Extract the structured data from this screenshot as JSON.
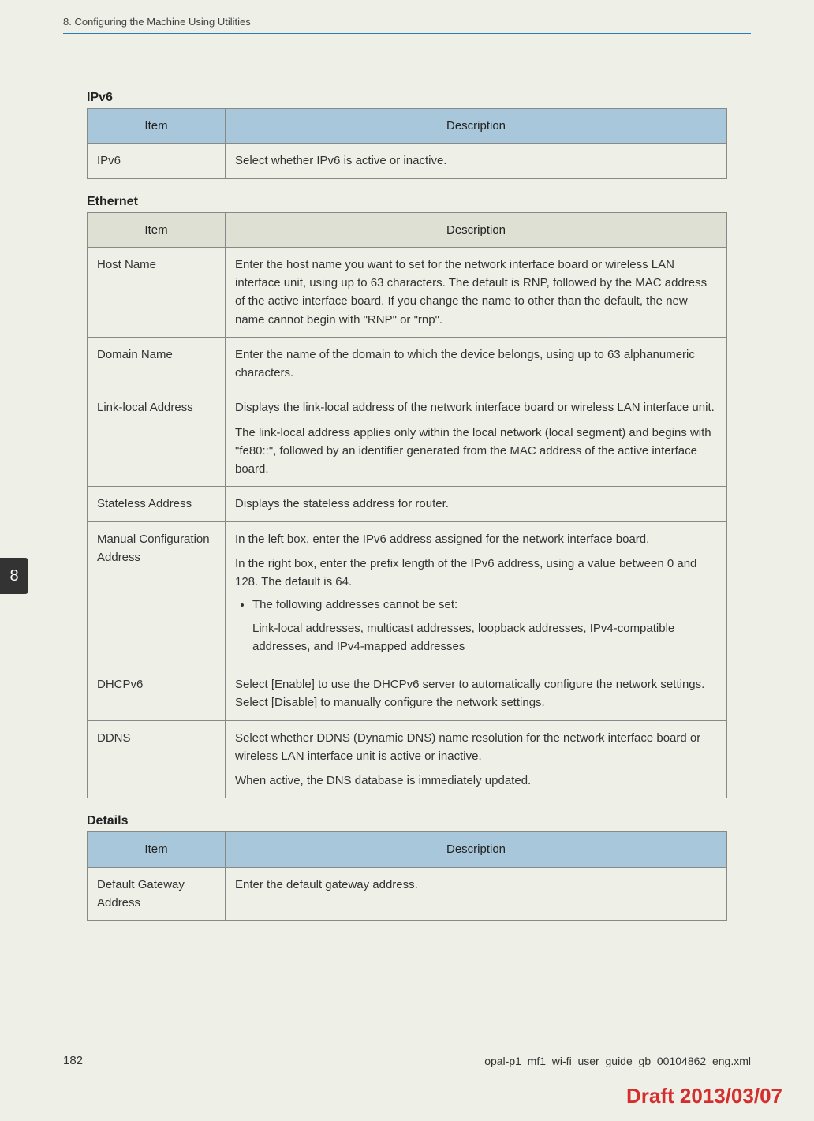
{
  "header": {
    "chapter": "8. Configuring the Machine Using Utilities"
  },
  "sideTab": "8",
  "sections": [
    {
      "title": "IPv6",
      "header_bg": "#a8c7da",
      "columns": {
        "item": "Item",
        "desc": "Description"
      },
      "rows": [
        {
          "item": "IPv6",
          "desc": "Select whether IPv6 is active or inactive."
        }
      ]
    },
    {
      "title": "Ethernet",
      "header_bg": "#dee0d4",
      "columns": {
        "item": "Item",
        "desc": "Description"
      },
      "rows": [
        {
          "item": "Host Name",
          "desc": "Enter the host name you want to set for the network interface board or wireless LAN interface unit, using up to 63 characters. The default is RNP, followed by the MAC address of the active interface board. If you change the name to other than the default, the new name cannot begin with \"RNP\" or \"rnp\"."
        },
        {
          "item": "Domain Name",
          "desc": "Enter the name of the domain to which the device belongs, using up to 63 alphanumeric characters."
        },
        {
          "item": "Link-local Address",
          "desc_multi": [
            "Displays the link-local address of the network interface board or wireless LAN interface unit.",
            "The link-local address applies only within the local network (local segment) and begins with \"fe80::\", followed by an identifier generated from the MAC address of the active interface board."
          ]
        },
        {
          "item": "Stateless Address",
          "desc": "Displays the stateless address for router."
        },
        {
          "item": "Manual Configuration Address",
          "desc_multi": [
            "In the left box, enter the IPv6 address assigned for the network interface board.",
            "In the right box, enter the prefix length of the IPv6 address, using a value between 0 and 128. The default is 64."
          ],
          "bullet": "The following addresses cannot be set:",
          "bullet_sub": "Link-local addresses, multicast addresses, loopback addresses, IPv4-compatible addresses, and IPv4-mapped addresses"
        },
        {
          "item": "DHCPv6",
          "desc": "Select [Enable] to use the DHCPv6 server to automatically configure the network settings. Select [Disable] to manually configure the network settings."
        },
        {
          "item": "DDNS",
          "desc_multi": [
            "Select whether DDNS (Dynamic DNS) name resolution for the network interface board or wireless LAN interface unit is active or inactive.",
            "When active, the DNS database is immediately updated."
          ]
        }
      ]
    },
    {
      "title": "Details",
      "header_bg": "#a8c7da",
      "columns": {
        "item": "Item",
        "desc": "Description"
      },
      "rows": [
        {
          "item": "Default Gateway Address",
          "desc": "Enter the default gateway address."
        }
      ]
    }
  ],
  "footer": {
    "pageNum": "182",
    "filename": "opal-p1_mf1_wi-fi_user_guide_gb_00104862_eng.xml",
    "draft": "Draft 2013/03/07"
  },
  "colors": {
    "page_bg": "#eef0e8",
    "rule": "#2b7db5",
    "border": "#888",
    "draft": "#d42e2e"
  }
}
